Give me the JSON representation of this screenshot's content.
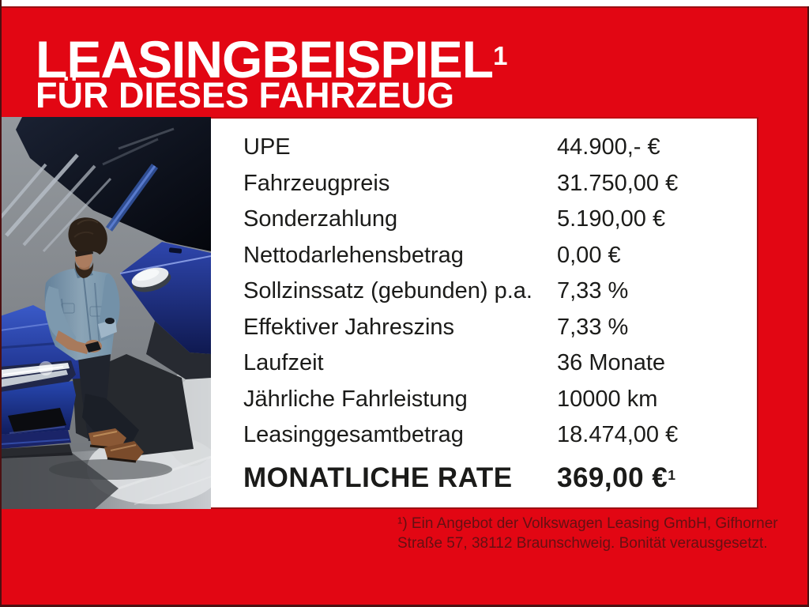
{
  "theme": {
    "red": "#e20613",
    "panel_bg": "#ffffff",
    "title_color": "#ffffff",
    "table_text_color": "#1b1b19",
    "footnote_color": "#641013"
  },
  "header": {
    "title": "LEASINGBEISPIEL",
    "title_sup": "1",
    "subtitle": "FÜR DIESES FAHRZEUG"
  },
  "photo": {
    "alt": "Mann in Jeanshemd lehnt an blauem VW Kombi im Studio"
  },
  "table": {
    "rows": [
      {
        "label": "UPE",
        "value": "44.900,- €"
      },
      {
        "label": "Fahrzeugpreis",
        "value": "31.750,00 €"
      },
      {
        "label": "Sonderzahlung",
        "value": "5.190,00 €"
      },
      {
        "label": "Nettodarlehensbetrag",
        "value": "0,00 €"
      },
      {
        "label": "Sollzinssatz (gebunden) p.a.",
        "value": "7,33 %"
      },
      {
        "label": "Effektiver Jahreszins",
        "value": "7,33 %"
      },
      {
        "label": "Laufzeit",
        "value": "36 Monate"
      },
      {
        "label": "Jährliche Fahrleistung",
        "value": "10000 km"
      },
      {
        "label": "Leasinggesamtbetrag",
        "value": "18.474,00 €"
      }
    ],
    "monthly": {
      "label": "MONATLICHE RATE",
      "value": "369,00 €",
      "value_sup": "1"
    }
  },
  "footnote": {
    "line1": "¹) Ein Angebot der Volkswagen Leasing GmbH, Gifhorner",
    "line2": "Straße 57, 38112 Braunschweig. Bonität verausgesetzt."
  }
}
